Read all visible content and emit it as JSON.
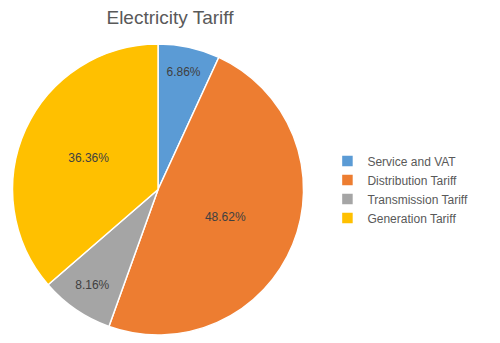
{
  "chart_data": {
    "type": "pie",
    "title": "Electricity Tariff",
    "categories": [
      "Service and VAT",
      "Distribution Tariff",
      "Transmission Tariff",
      "Generation Tariff"
    ],
    "values": [
      6.86,
      48.62,
      8.16,
      36.36
    ],
    "value_labels": [
      "6.86%",
      "48.62%",
      "8.16%",
      "36.36%"
    ],
    "colors": [
      "#5b9bd5",
      "#ed7d31",
      "#a5a5a5",
      "#ffc000"
    ],
    "data_labels": true,
    "legend": "right"
  }
}
